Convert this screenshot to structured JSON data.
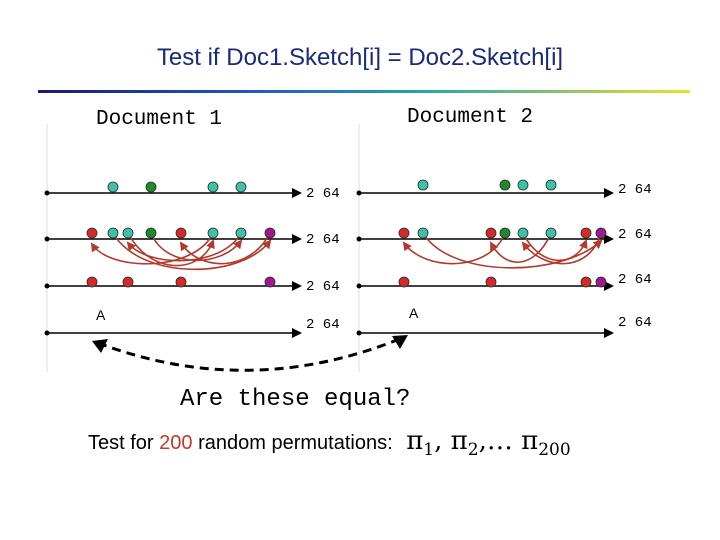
{
  "title": "Test if Doc1.Sketch[i] = Doc2.Sketch[i]",
  "doc1_label": "Document 1",
  "doc2_label": "Document 2",
  "exponent_label": "2 64",
  "point_label": "A",
  "question": "Are these equal?",
  "test_text": "Test for",
  "test_count": "200",
  "test_text_after": "random permutations:",
  "pi_symbol": "π",
  "pi_subscripts": [
    "1",
    "2",
    "200"
  ],
  "pi_separators": [
    ", ",
    ",… "
  ],
  "colors": {
    "title": "#1a2a7a",
    "teal_dot": "#3cc3a6",
    "green_dot": "#1f8a2b",
    "red_dot": "#d42a2a",
    "purple_dot": "#a0178f",
    "arc": "#b03a2e",
    "count": "#c0392b"
  }
}
